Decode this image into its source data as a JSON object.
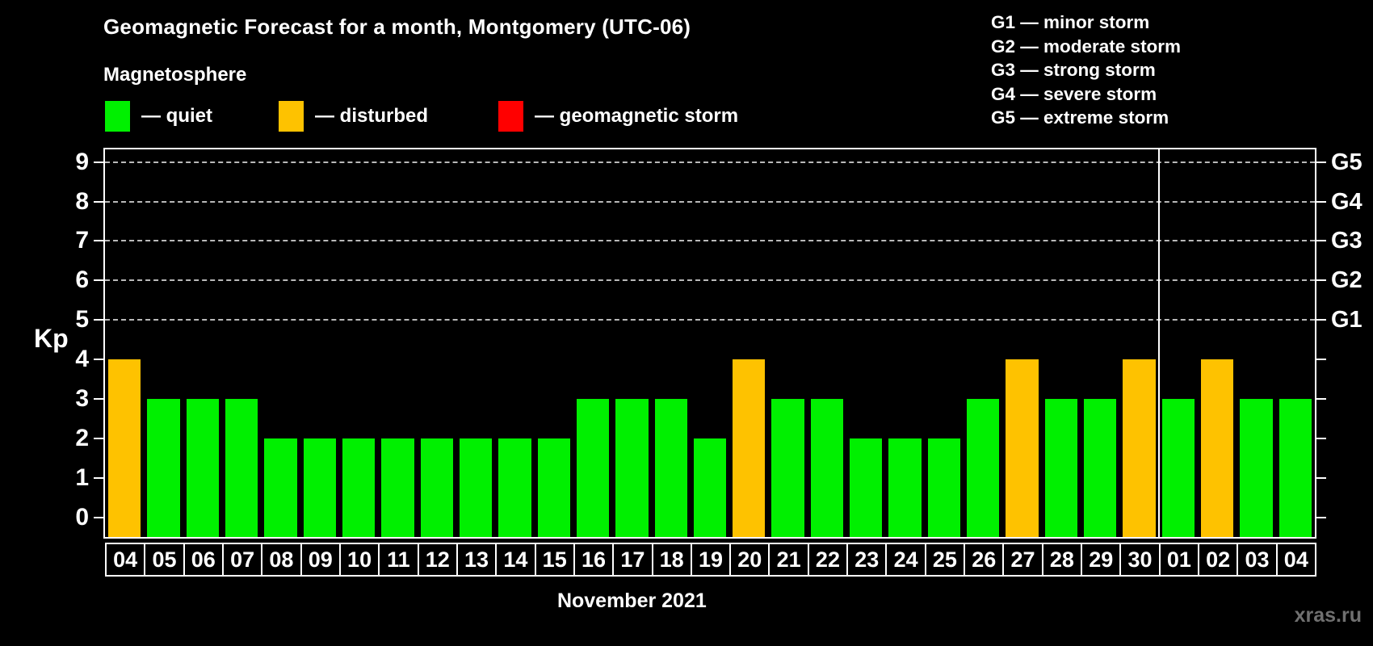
{
  "title": "Geomagnetic Forecast for a month, Montgomery (UTC-06)",
  "subtitle": "Magnetosphere",
  "legend": {
    "items": [
      {
        "key": "quiet",
        "label": "— quiet",
        "color": "#00f000"
      },
      {
        "key": "disturbed",
        "label": "— disturbed",
        "color": "#fec200"
      },
      {
        "key": "storm",
        "label": "— geomagnetic storm",
        "color": "#ff0000"
      }
    ]
  },
  "g_legend": [
    "G1 — minor storm",
    "G2 — moderate storm",
    "G3 — strong storm",
    "G4 — severe storm",
    "G5 — extreme storm"
  ],
  "watermark": "xras.ru",
  "chart_data": {
    "type": "bar",
    "title": "Geomagnetic Forecast for a month, Montgomery (UTC-06)",
    "xlabel": "November 2021",
    "ylabel": "Kp",
    "ylim": [
      -0.5,
      9.32
    ],
    "yticks": [
      0,
      1,
      2,
      3,
      4,
      5,
      6,
      7,
      8,
      9
    ],
    "gridlines_kp": [
      5,
      6,
      7,
      8,
      9
    ],
    "grid_style": "dashed horizontal",
    "legend_position": "top-left",
    "right_axis_labels": [
      {
        "kp": 9,
        "label": "G5"
      },
      {
        "kp": 8,
        "label": "G4"
      },
      {
        "kp": 7,
        "label": "G3"
      },
      {
        "kp": 6,
        "label": "G2"
      },
      {
        "kp": 5,
        "label": "G1"
      }
    ],
    "categories": [
      "04",
      "05",
      "06",
      "07",
      "08",
      "09",
      "10",
      "11",
      "12",
      "13",
      "14",
      "15",
      "16",
      "17",
      "18",
      "19",
      "20",
      "21",
      "22",
      "23",
      "24",
      "25",
      "26",
      "27",
      "28",
      "29",
      "30",
      "01",
      "02",
      "03",
      "04"
    ],
    "values": [
      4,
      3,
      3,
      3,
      2,
      2,
      2,
      2,
      2,
      2,
      2,
      2,
      3,
      3,
      3,
      2,
      4,
      3,
      3,
      2,
      2,
      2,
      3,
      4,
      3,
      3,
      4,
      3,
      4,
      3,
      3
    ],
    "statuses": [
      "disturbed",
      "quiet",
      "quiet",
      "quiet",
      "quiet",
      "quiet",
      "quiet",
      "quiet",
      "quiet",
      "quiet",
      "quiet",
      "quiet",
      "quiet",
      "quiet",
      "quiet",
      "quiet",
      "disturbed",
      "quiet",
      "quiet",
      "quiet",
      "quiet",
      "quiet",
      "quiet",
      "disturbed",
      "quiet",
      "quiet",
      "disturbed",
      "quiet",
      "disturbed",
      "quiet",
      "quiet"
    ],
    "status_colors": {
      "quiet": "#00f000",
      "disturbed": "#fec200",
      "storm": "#ff0000"
    },
    "month_separator_after_index": 26
  }
}
